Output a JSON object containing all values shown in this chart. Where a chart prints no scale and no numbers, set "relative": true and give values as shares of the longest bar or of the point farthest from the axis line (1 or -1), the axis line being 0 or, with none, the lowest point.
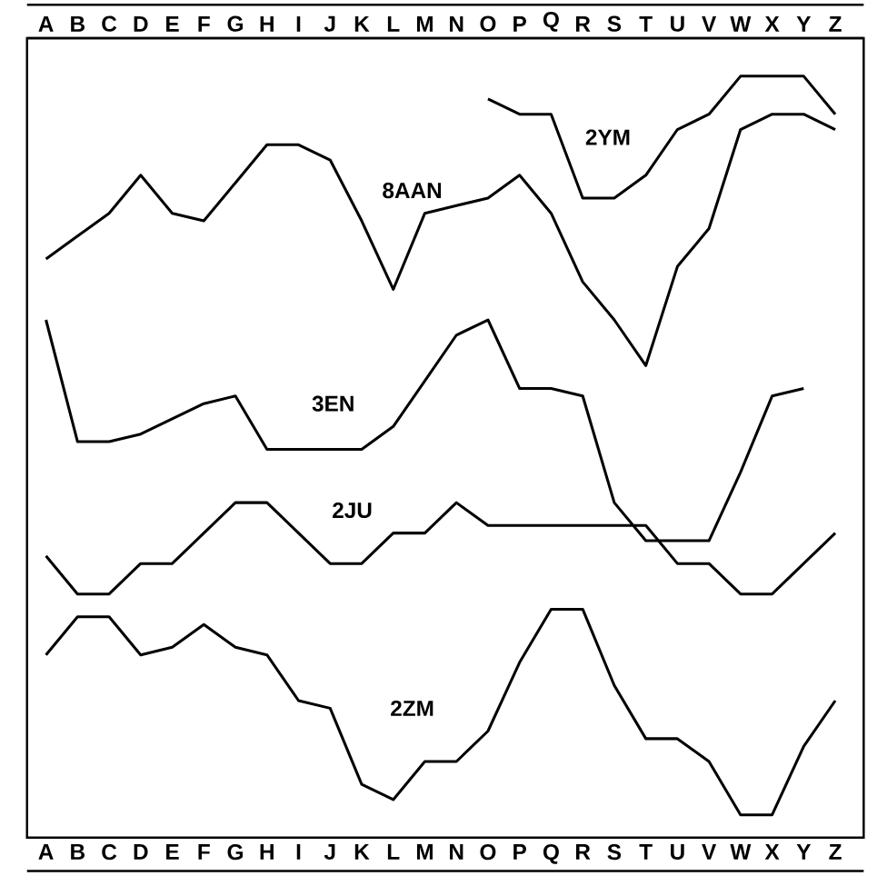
{
  "chart_data": {
    "type": "line",
    "relative": true,
    "categories": [
      "A",
      "B",
      "C",
      "D",
      "E",
      "F",
      "G",
      "H",
      "I",
      "J",
      "K",
      "L",
      "M",
      "N",
      "O",
      "P",
      "Q",
      "R",
      "S",
      "T",
      "U",
      "V",
      "W",
      "X",
      "Y",
      "Z"
    ],
    "series": [
      {
        "name": "2YM",
        "color": "#000000",
        "values": [
          null,
          null,
          null,
          null,
          null,
          null,
          null,
          null,
          null,
          null,
          null,
          null,
          null,
          null,
          0.97,
          0.95,
          0.95,
          0.84,
          0.84,
          0.87,
          0.93,
          0.95,
          1.0,
          1.0,
          1.0,
          0.95
        ]
      },
      {
        "name": "8AAN",
        "color": "#000000",
        "values": [
          0.76,
          0.79,
          0.82,
          0.87,
          0.82,
          0.81,
          0.86,
          0.91,
          0.91,
          0.89,
          0.81,
          0.72,
          0.82,
          0.83,
          0.84,
          0.87,
          0.82,
          0.73,
          0.68,
          0.62,
          0.75,
          0.8,
          0.93,
          0.95,
          0.95,
          0.93
        ]
      },
      {
        "name": "3EN",
        "color": "#000000",
        "values": [
          0.68,
          0.52,
          0.52,
          0.53,
          0.55,
          0.57,
          0.58,
          0.51,
          0.51,
          0.51,
          0.51,
          0.54,
          0.6,
          0.66,
          0.68,
          0.59,
          0.59,
          0.58,
          0.44,
          0.39,
          0.39,
          0.39,
          0.48,
          0.58,
          0.59,
          null
        ]
      },
      {
        "name": "2JU",
        "color": "#000000",
        "values": [
          0.37,
          0.32,
          0.32,
          0.36,
          0.36,
          0.4,
          0.44,
          0.44,
          0.4,
          0.36,
          0.36,
          0.4,
          0.4,
          0.44,
          0.41,
          0.41,
          0.41,
          0.41,
          0.41,
          0.41,
          0.36,
          0.36,
          0.32,
          0.32,
          0.36,
          0.4
        ]
      },
      {
        "name": "2ZM",
        "color": "#000000",
        "values": [
          0.24,
          0.29,
          0.29,
          0.24,
          0.25,
          0.28,
          0.25,
          0.24,
          0.18,
          0.17,
          0.07,
          0.05,
          0.1,
          0.1,
          0.14,
          0.23,
          0.3,
          0.3,
          0.2,
          0.13,
          0.13,
          0.1,
          0.03,
          0.03,
          0.12,
          0.18
        ]
      }
    ]
  }
}
